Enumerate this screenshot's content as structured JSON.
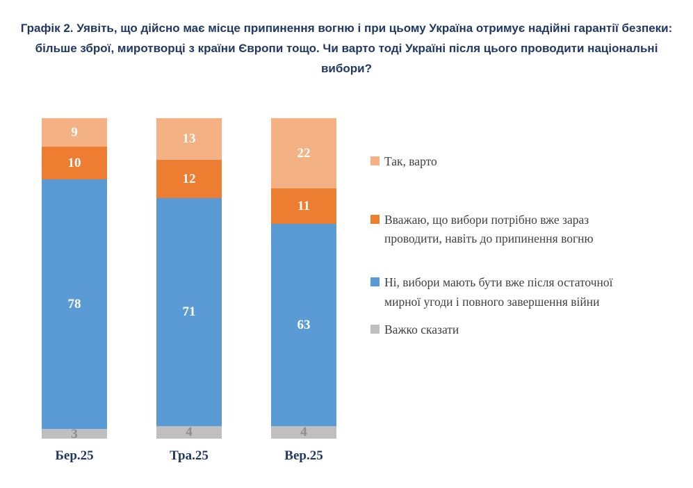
{
  "title": "Графік 2. Уявіть, що дійсно має місце припинення вогню і при цьому Україна отримує надійні гарантії безпеки: більше зброї, миротворці з країни Європи тощо. Чи варто тоді Україні після цього проводити національні вибори?",
  "chart_data": {
    "type": "bar",
    "stacked": true,
    "orientation": "vertical",
    "categories": [
      "Бер.25",
      "Тра.25",
      "Вер.25"
    ],
    "series": [
      {
        "name": "Так, варто",
        "color": "#F4B183",
        "label_color": "#FFFFFF",
        "values": [
          9,
          13,
          22
        ]
      },
      {
        "name": "Вважаю, що вибори потрібно вже зараз проводити, навіть до припинення вогню",
        "color": "#ED7D31",
        "label_color": "#FFFFFF",
        "values": [
          10,
          12,
          11
        ]
      },
      {
        "name": "Ні, вибори мають бути вже після остаточної мирної угоди і повного завершення війни",
        "color": "#5B9BD5",
        "label_color": "#FFFFFF",
        "values": [
          78,
          71,
          63
        ]
      },
      {
        "name": "Важко сказати",
        "color": "#BFBFBF",
        "label_color": "#8C8C8C",
        "values": [
          3,
          4,
          4
        ]
      }
    ],
    "ylim": [
      0,
      100
    ],
    "grid": false,
    "legend_position": "right",
    "title_color": "#1F3864",
    "axis_label_color": "#1F3864"
  }
}
